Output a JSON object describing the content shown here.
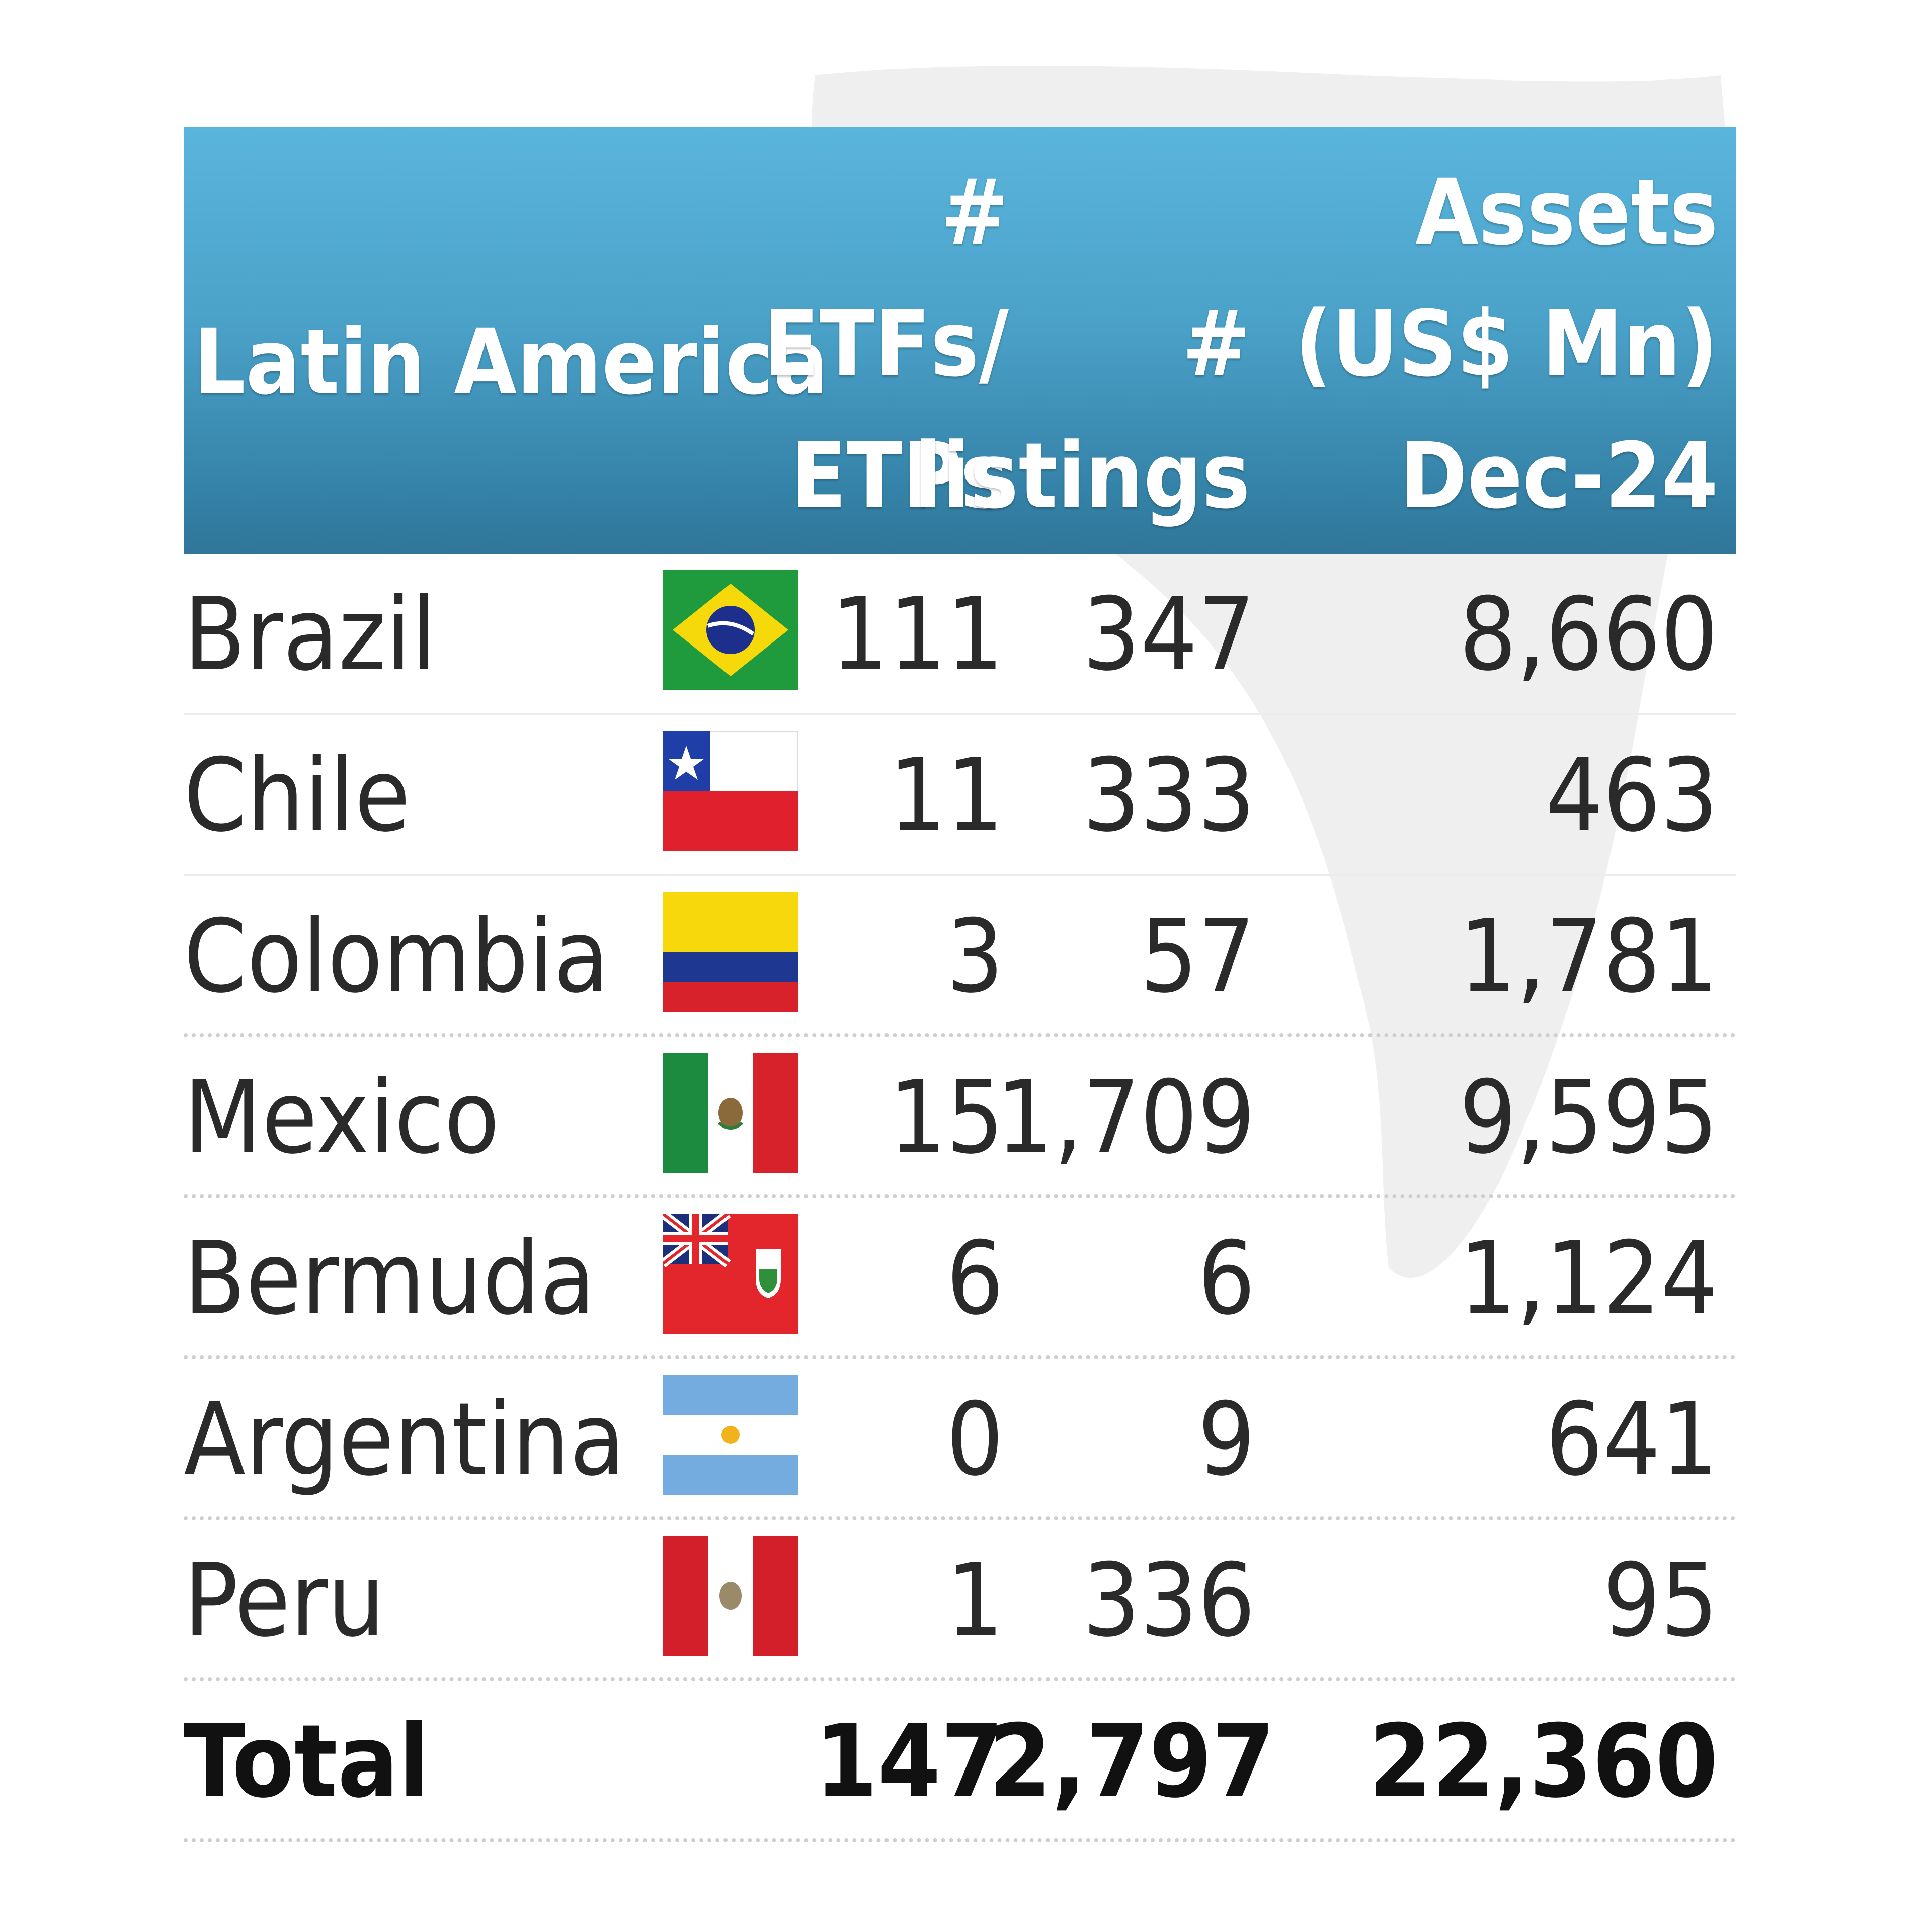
{
  "header": {
    "region": "Latin America",
    "etfs_line1": "#",
    "etfs_line2": "ETFs/",
    "etfs_line3": "ETPs",
    "listings_line1": "#",
    "listings_line2": "listings",
    "assets_line1": "Assets",
    "assets_line2": "(US$ Mn)",
    "assets_line3": "Dec-24"
  },
  "rows": [
    {
      "country": "Brazil",
      "flag": "brazil-flag-icon",
      "etfs": "111",
      "listings": "347",
      "assets": "8,660"
    },
    {
      "country": "Chile",
      "flag": "chile-flag-icon",
      "etfs": "11",
      "listings": "333",
      "assets": "463"
    },
    {
      "country": "Colombia",
      "flag": "colombia-flag-icon",
      "etfs": "3",
      "listings": "57",
      "assets": "1,781"
    },
    {
      "country": "Mexico",
      "flag": "mexico-flag-icon",
      "etfs": "15",
      "listings": "1,709",
      "assets": "9,595"
    },
    {
      "country": "Bermuda",
      "flag": "bermuda-flag-icon",
      "etfs": "6",
      "listings": "6",
      "assets": "1,124"
    },
    {
      "country": "Argentina",
      "flag": "argentina-flag-icon",
      "etfs": "0",
      "listings": "9",
      "assets": "641"
    },
    {
      "country": "Peru",
      "flag": "peru-flag-icon",
      "etfs": "1",
      "listings": "336",
      "assets": "95"
    }
  ],
  "total": {
    "label": "Total",
    "etfs": "147",
    "listings": "2,797",
    "assets": "22,360"
  },
  "colors": {
    "header_top": "#5ab5dc",
    "header_bottom": "#2f7699",
    "text": "#2a2a2a"
  },
  "chart_data": {
    "type": "table",
    "columns": [
      "Latin America",
      "# ETFs/ ETPs",
      "# listings",
      "Assets (US$ Mn) Dec-24"
    ],
    "rows": [
      [
        "Brazil",
        111,
        347,
        8660
      ],
      [
        "Chile",
        11,
        333,
        463
      ],
      [
        "Colombia",
        3,
        57,
        1781
      ],
      [
        "Mexico",
        15,
        1709,
        9595
      ],
      [
        "Bermuda",
        6,
        6,
        1124
      ],
      [
        "Argentina",
        0,
        9,
        641
      ],
      [
        "Peru",
        1,
        336,
        95
      ],
      [
        "Total",
        147,
        2797,
        22360
      ]
    ]
  }
}
